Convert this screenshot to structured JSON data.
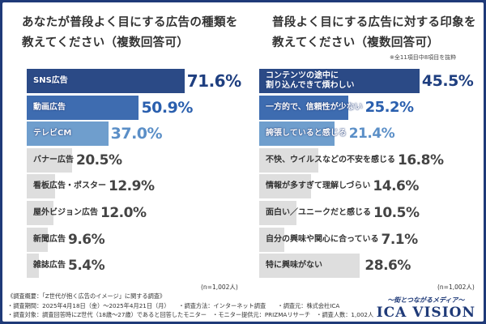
{
  "chart_data": [
    {
      "type": "bar",
      "orientation": "horizontal",
      "title": "あなたが普段よく目にする広告の種類を\n教えてください（複数回答可）",
      "unit": "%",
      "categories": [
        "SNS広告",
        "動画広告",
        "テレビCM",
        "バナー広告",
        "看板広告・ポスター",
        "屋外ビジョン広告",
        "新聞広告",
        "雑誌広告"
      ],
      "values": [
        71.6,
        50.9,
        37.0,
        20.5,
        12.9,
        12.0,
        9.6,
        5.4
      ],
      "value_labels": [
        "71.6%",
        "50.9%",
        "37.0%",
        "20.5%",
        "12.9%",
        "12.0%",
        "9.6%",
        "5.4%"
      ],
      "bar_colors": [
        "#2b4a86",
        "#3e6cb0",
        "#6f9ecd",
        "#dedede",
        "#dedede",
        "#dedede",
        "#dedede",
        "#dedede"
      ],
      "value_colors": [
        "#1f3f80",
        "#2a5fae",
        "#5b8fc7",
        "#444444",
        "#444444",
        "#444444",
        "#444444",
        "#444444"
      ],
      "sample": "(n=1,002人)"
    },
    {
      "type": "bar",
      "orientation": "horizontal",
      "title": "普段よく目にする広告に対する印象を\n教えてください（複数回答可）",
      "note": "※全11項目中8項目を抜粋",
      "unit": "%",
      "categories": [
        "コンテンツの途中に\n割り込んできて煩わしい",
        "一方的で、信頼性が少ない",
        "誇張していると感じる",
        "不快、ウイルスなどの不安を感じる",
        "情報が多すぎて理解しづらい",
        "面白い／ユニークだと感じる",
        "自分の興味や関心に合っている",
        "特に興味がない"
      ],
      "values": [
        45.5,
        25.2,
        21.4,
        16.8,
        14.6,
        10.5,
        7.1,
        28.6
      ],
      "value_labels": [
        "45.5%",
        "25.2%",
        "21.4%",
        "16.8%",
        "14.6%",
        "10.5%",
        "7.1%",
        "28.6%"
      ],
      "bar_colors": [
        "#2b4a86",
        "#3e6cb0",
        "#6f9ecd",
        "#dedede",
        "#dedede",
        "#dedede",
        "#dedede",
        "#dedede"
      ],
      "value_colors": [
        "#1f3f80",
        "#2a5fae",
        "#5b8fc7",
        "#444444",
        "#444444",
        "#444444",
        "#444444",
        "#444444"
      ],
      "sample": "(n=1,002人)"
    }
  ],
  "footer": {
    "lines": [
      "《調査概要：「Z世代が抱く広告のイメージ」に関する調査》",
      "・調査期間：2025年4月18日（金）～2025年4月21日（月）　　・調査方法：インターネット調査　　・調査元：株式会社ICA",
      "・調査対象：調査回答時にZ世代（18歳～27歳）であると回答したモニター　・モニター提供元：PRIZMAリサーチ　・調査人数：1,002人"
    ]
  },
  "logo": {
    "tagline": "～街とつながるメディア～",
    "brand": "ICA VISION"
  }
}
